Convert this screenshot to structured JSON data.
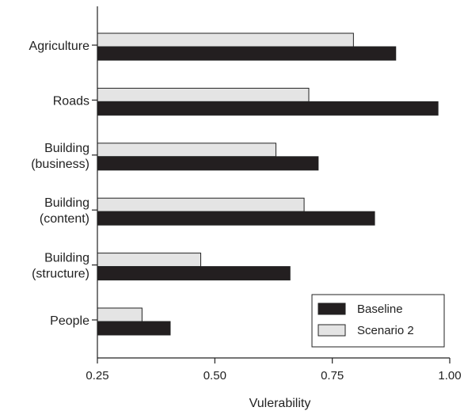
{
  "chart_data": {
    "type": "bar",
    "orientation": "horizontal",
    "title": "",
    "xlabel": "Vulerability",
    "ylabel": "",
    "xlim": [
      0.25,
      1.0
    ],
    "xticks": [
      0.25,
      0.5,
      0.75,
      1.0
    ],
    "xtick_labels": [
      "0.25",
      "0.50",
      "0.75",
      "1.00"
    ],
    "grid": false,
    "legend_position": "bottom-right",
    "categories": [
      [
        "Agriculture"
      ],
      [
        "Roads"
      ],
      [
        "Building",
        "(business)"
      ],
      [
        "Building",
        "(content)"
      ],
      [
        "Building",
        "(structure)"
      ],
      [
        "People"
      ]
    ],
    "series": [
      {
        "name": "Baseline",
        "color": "#231f20",
        "values": [
          0.885,
          0.975,
          0.72,
          0.84,
          0.66,
          0.405
        ]
      },
      {
        "name": "Scenario 2",
        "color": "#e4e4e4",
        "values": [
          0.795,
          0.7,
          0.63,
          0.69,
          0.47,
          0.345
        ]
      }
    ]
  }
}
